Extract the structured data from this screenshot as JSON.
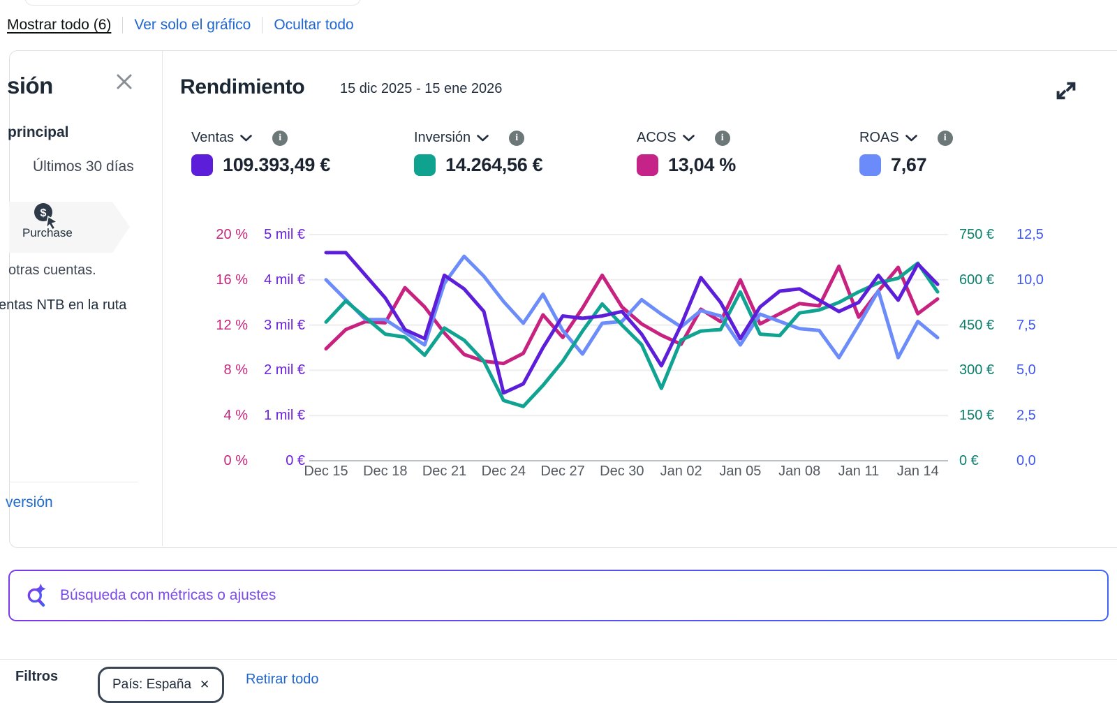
{
  "toolbar": {
    "show_all": "Mostrar todo (6)",
    "chart_only": "Ver solo el gráfico",
    "hide_all": "Ocultar todo"
  },
  "sidebar": {
    "heading_fragment": "sión",
    "subheading_fragment": "principal",
    "period": "Últimos 30 días",
    "stage_label": "Purchase",
    "note1_fragment": "otras cuentas.",
    "note2_fragment": "entas NTB en la ruta",
    "link_fragment": "versión"
  },
  "panel": {
    "title": "Rendimiento",
    "date_range": "15 dic 2025 - 15 ene 2026"
  },
  "metrics": [
    {
      "label": "Ventas",
      "value": "109.393,49 €",
      "color": "#5c1ed9"
    },
    {
      "label": "Inversión",
      "value": "14.264,56 €",
      "color": "#0fa28f"
    },
    {
      "label": "ACOS",
      "value": "13,04 %",
      "color": "#c52387"
    },
    {
      "label": "ROAS",
      "value": "7,67",
      "color": "#6b8bfb"
    }
  ],
  "icons": {
    "close": "✕",
    "info": "i",
    "pill_close": "✕",
    "purchase_dollar": "$"
  },
  "search": {
    "placeholder": "Búsqueda con métricas o ajustes"
  },
  "footer": {
    "filters_label": "Filtros",
    "pill": "País: España",
    "clear_link": "Retirar todo"
  },
  "chart_data": {
    "type": "line",
    "title": "Rendimiento",
    "date_range": "15 dic 2025 - 15 ene 2026",
    "x": [
      "Dec 15",
      "Dec 16",
      "Dec 17",
      "Dec 18",
      "Dec 19",
      "Dec 20",
      "Dec 21",
      "Dec 22",
      "Dec 23",
      "Dec 24",
      "Dec 25",
      "Dec 26",
      "Dec 27",
      "Dec 28",
      "Dec 29",
      "Dec 30",
      "Dec 31",
      "Jan 01",
      "Jan 02",
      "Jan 03",
      "Jan 04",
      "Jan 05",
      "Jan 06",
      "Jan 07",
      "Jan 08",
      "Jan 09",
      "Jan 10",
      "Jan 11",
      "Jan 12",
      "Jan 13",
      "Jan 14",
      "Jan 15"
    ],
    "x_tick_labels": [
      "Dec 15",
      "Dec 18",
      "Dec 21",
      "Dec 24",
      "Dec 27",
      "Dec 30",
      "Jan 02",
      "Jan 05",
      "Jan 08",
      "Jan 11",
      "Jan 14"
    ],
    "grid": true,
    "legend_position": "top",
    "series": [
      {
        "name": "Ventas",
        "unit": "€",
        "axis": "left_eur",
        "color": "#5c1ed9",
        "values": [
          4600,
          4600,
          4100,
          3600,
          2900,
          2700,
          4100,
          3800,
          3300,
          1500,
          1700,
          2500,
          3200,
          3150,
          3200,
          3300,
          2800,
          2100,
          3000,
          4050,
          3500,
          2700,
          3400,
          3750,
          3800,
          3550,
          3300,
          3500,
          4100,
          3550,
          4350,
          3900
        ]
      },
      {
        "name": "Inversión",
        "unit": "€",
        "axis": "right_eur",
        "color": "#10a392",
        "values": [
          460,
          530,
          475,
          420,
          410,
          350,
          440,
          400,
          330,
          200,
          180,
          250,
          330,
          430,
          520,
          450,
          385,
          240,
          400,
          430,
          435,
          560,
          420,
          415,
          490,
          500,
          525,
          560,
          590,
          605,
          655,
          560
        ]
      },
      {
        "name": "ACOS",
        "unit": "%",
        "axis": "left_pct",
        "color": "#c7227f",
        "values": [
          9.9,
          11.6,
          12.3,
          12.2,
          15.3,
          13.6,
          11.3,
          9.4,
          8.8,
          8.6,
          9.5,
          12.9,
          10.9,
          13.5,
          16.4,
          13.6,
          12.1,
          11.1,
          10.3,
          13.4,
          12.3,
          16.0,
          12.1,
          13.0,
          13.9,
          13.7,
          17.2,
          12.7,
          15.0,
          17.1,
          13.0,
          14.3
        ]
      },
      {
        "name": "ROAS",
        "unit": "",
        "axis": "right_ratio",
        "color": "#6c8cfa",
        "values": [
          10.0,
          8.9,
          7.8,
          7.8,
          7.1,
          6.4,
          9.8,
          11.3,
          10.2,
          8.8,
          7.6,
          9.2,
          7.2,
          5.9,
          7.6,
          7.7,
          8.9,
          8.1,
          7.4,
          8.3,
          8.0,
          6.4,
          8.1,
          7.7,
          7.3,
          7.2,
          5.7,
          7.5,
          9.4,
          5.7,
          7.7,
          6.8
        ]
      }
    ],
    "axes": {
      "left_pct": {
        "color": "#c2257c",
        "range": [
          0,
          20
        ],
        "ticks": [
          "20 %",
          "16 %",
          "12 %",
          "8 %",
          "4 %",
          "0 %"
        ]
      },
      "left_eur": {
        "color": "#6a1fd9",
        "range": [
          0,
          5000
        ],
        "ticks": [
          "5 mil €",
          "4 mil €",
          "3 mil €",
          "2 mil €",
          "1 mil €",
          "0 €"
        ]
      },
      "right_eur": {
        "color": "#0b7f6d",
        "range": [
          0,
          750
        ],
        "ticks": [
          "750 €",
          "600 €",
          "450 €",
          "300 €",
          "150 €",
          "0 €"
        ]
      },
      "right_ratio": {
        "color": "#3e56f0",
        "range": [
          0,
          12.5
        ],
        "ticks": [
          "12,5",
          "10,0",
          "7,5",
          "5,0",
          "2,5",
          "0,0"
        ]
      }
    }
  }
}
